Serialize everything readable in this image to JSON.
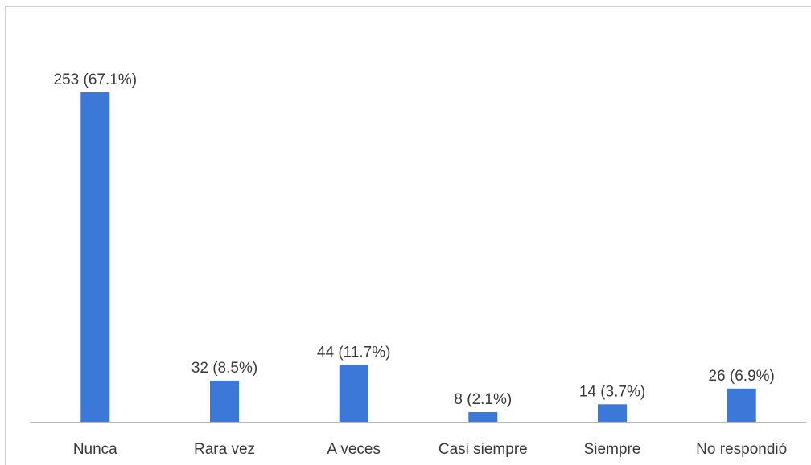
{
  "chart_data": {
    "type": "bar",
    "title": "",
    "xlabel": "",
    "ylabel": "",
    "categories": [
      "Nunca",
      "Rara vez",
      "A veces",
      "Casi siempre",
      "Siempre",
      "No respondió"
    ],
    "values": [
      253,
      32,
      44,
      8,
      14,
      26
    ],
    "percentages": [
      "67.1%",
      "8.5%",
      "11.7%",
      "2.1%",
      "3.7%",
      "6.9%"
    ],
    "data_labels": [
      "253 (67.1%)",
      "32 (8.5%)",
      "44 (11.7%)",
      "8 (2.1%)",
      "14 (3.7%)",
      "26 (6.9%)"
    ],
    "ylim": [
      0,
      260
    ],
    "grid": false,
    "legend": "none",
    "bar_color": "#3c78d8"
  }
}
